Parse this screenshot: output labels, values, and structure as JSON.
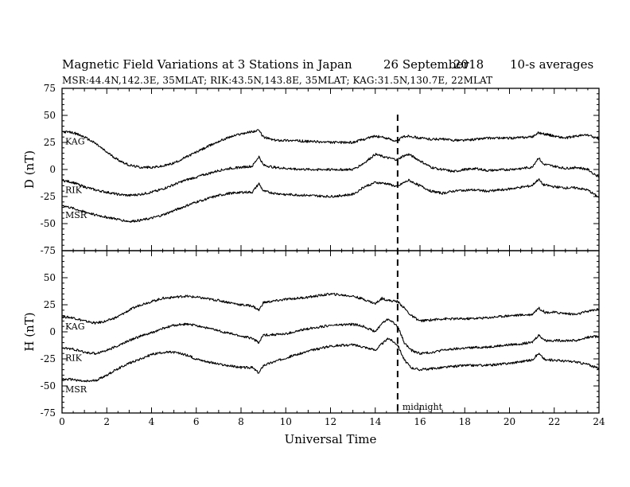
{
  "header": {
    "title": "Magnetic Field Variations at 3 Stations in Japan",
    "date": "26 September",
    "year": "2018",
    "averaging": "10-s averages",
    "subtitle": "MSR:44.4N,142.3E, 35MLAT;  RIK:43.5N,143.8E, 35MLAT;  KAG:31.5N,130.7E, 22MLAT"
  },
  "chart_data": [
    {
      "type": "line",
      "panel": "D",
      "ylabel": "D (nT)",
      "ylim": [
        -75,
        75
      ],
      "yticks": [
        75,
        50,
        25,
        0,
        -25,
        -50,
        -75
      ],
      "xlim": [
        0,
        24
      ],
      "series": [
        {
          "name": "KAG",
          "x": [
            0,
            0.5,
            1,
            1.5,
            2,
            2.5,
            3,
            3.5,
            4,
            4.5,
            5,
            5.5,
            6,
            6.5,
            7,
            7.5,
            8,
            8.5,
            8.8,
            9,
            9.5,
            10,
            11,
            12,
            13,
            13.5,
            14,
            14.5,
            15,
            15.2,
            15.5,
            16,
            16.5,
            17,
            17.5,
            18,
            18.5,
            19,
            20,
            21,
            21.3,
            21.5,
            22,
            22.5,
            23,
            23.5,
            24
          ],
          "y": [
            35,
            34,
            30,
            24,
            16,
            9,
            4,
            2,
            2,
            3,
            6,
            11,
            16,
            21,
            26,
            30,
            33,
            35,
            36,
            30,
            27,
            27,
            26,
            25,
            25,
            28,
            31,
            29,
            26,
            30,
            31,
            29,
            28,
            28,
            27,
            27,
            28,
            29,
            29,
            30,
            34,
            33,
            31,
            29,
            31,
            32,
            28
          ]
        },
        {
          "name": "RIK",
          "x": [
            0,
            0.5,
            1,
            1.5,
            2,
            2.5,
            3,
            3.5,
            4,
            4.5,
            5,
            5.5,
            6,
            6.5,
            7,
            7.5,
            8,
            8.5,
            8.8,
            9,
            9.5,
            10,
            11,
            12,
            13,
            13.5,
            14,
            14.5,
            15,
            15.2,
            15.5,
            16,
            16.5,
            17,
            17.5,
            18,
            18.5,
            19,
            20,
            21,
            21.3,
            21.5,
            22,
            22.5,
            23,
            23.5,
            24
          ],
          "y": [
            -10,
            -12,
            -16,
            -19,
            -21,
            -23,
            -24,
            -23,
            -21,
            -18,
            -14,
            -10,
            -7,
            -4,
            -1,
            1,
            2,
            3,
            12,
            4,
            2,
            1,
            0,
            0,
            0,
            6,
            14,
            11,
            9,
            12,
            14,
            8,
            2,
            0,
            -2,
            0,
            1,
            -1,
            0,
            2,
            11,
            5,
            3,
            1,
            2,
            0,
            -7
          ]
        },
        {
          "name": "MSR",
          "x": [
            0,
            0.5,
            1,
            1.5,
            2,
            2.5,
            3,
            3.5,
            4,
            4.5,
            5,
            5.5,
            6,
            6.5,
            7,
            7.5,
            8,
            8.5,
            8.8,
            9,
            9.5,
            10,
            11,
            12,
            13,
            13.5,
            14,
            14.5,
            15,
            15.2,
            15.5,
            16,
            16.5,
            17,
            17.5,
            18,
            18.5,
            19,
            20,
            21,
            21.3,
            21.5,
            22,
            22.5,
            23,
            23.5,
            24
          ],
          "y": [
            -33,
            -36,
            -39,
            -42,
            -44,
            -46,
            -48,
            -47,
            -45,
            -42,
            -38,
            -34,
            -30,
            -27,
            -24,
            -22,
            -21,
            -21,
            -13,
            -20,
            -22,
            -23,
            -24,
            -25,
            -23,
            -16,
            -12,
            -13,
            -16,
            -13,
            -10,
            -15,
            -20,
            -22,
            -20,
            -19,
            -19,
            -20,
            -18,
            -15,
            -9,
            -14,
            -16,
            -17,
            -17,
            -19,
            -26
          ]
        }
      ]
    },
    {
      "type": "line",
      "panel": "H",
      "ylabel": "H (nT)",
      "ylim": [
        -75,
        75
      ],
      "yticks": [
        50,
        25,
        0,
        -25,
        -50,
        -75
      ],
      "xlim": [
        0,
        24
      ],
      "xlabel": "Universal Time",
      "xticks": [
        0,
        2,
        4,
        6,
        8,
        10,
        12,
        14,
        16,
        18,
        20,
        22,
        24
      ],
      "annotation": {
        "x": 15,
        "label": "midnight"
      },
      "series": [
        {
          "name": "KAG",
          "x": [
            0,
            0.5,
            1,
            1.5,
            2,
            2.5,
            3,
            3.5,
            4,
            4.5,
            5,
            5.5,
            6,
            7,
            8,
            8.5,
            8.8,
            9,
            10,
            11,
            12,
            13,
            13.5,
            14,
            14.3,
            14.6,
            15,
            15.3,
            15.6,
            16,
            16.5,
            17,
            18,
            19,
            20,
            21,
            21.3,
            21.6,
            22,
            23,
            23.5,
            24
          ],
          "y": [
            14,
            13,
            10,
            8,
            10,
            14,
            20,
            25,
            28,
            31,
            32,
            33,
            32,
            29,
            25,
            24,
            20,
            27,
            30,
            32,
            35,
            33,
            30,
            26,
            31,
            29,
            28,
            22,
            15,
            10,
            11,
            12,
            12,
            13,
            15,
            16,
            22,
            18,
            18,
            16,
            19,
            21
          ]
        },
        {
          "name": "RIK",
          "x": [
            0,
            0.5,
            1,
            1.5,
            2,
            2.5,
            3,
            3.5,
            4,
            4.5,
            5,
            5.5,
            6,
            7,
            8,
            8.5,
            8.8,
            9,
            10,
            11,
            12,
            13,
            13.5,
            14,
            14.3,
            14.6,
            15,
            15.3,
            15.6,
            16,
            16.5,
            17,
            18,
            19,
            20,
            21,
            21.3,
            21.6,
            22,
            23,
            23.5,
            24
          ],
          "y": [
            -15,
            -16,
            -19,
            -20,
            -17,
            -13,
            -8,
            -4,
            -1,
            3,
            6,
            7,
            6,
            1,
            -4,
            -6,
            -10,
            -3,
            -2,
            3,
            6,
            7,
            5,
            0,
            8,
            12,
            5,
            -10,
            -17,
            -20,
            -19,
            -17,
            -15,
            -14,
            -12,
            -10,
            -3,
            -8,
            -8,
            -8,
            -5,
            -4
          ]
        },
        {
          "name": "MSR",
          "x": [
            0,
            0.5,
            1,
            1.5,
            2,
            2.5,
            3,
            3.5,
            4,
            4.5,
            5,
            5.5,
            6,
            7,
            8,
            8.5,
            8.8,
            9,
            10,
            11,
            12,
            13,
            13.5,
            14,
            14.3,
            14.6,
            15,
            15.3,
            15.6,
            16,
            16.5,
            17,
            18,
            19,
            20,
            21,
            21.3,
            21.6,
            22,
            23,
            23.5,
            24
          ],
          "y": [
            -44,
            -44,
            -46,
            -45,
            -40,
            -34,
            -29,
            -25,
            -21,
            -19,
            -19,
            -21,
            -25,
            -30,
            -33,
            -33,
            -38,
            -31,
            -24,
            -18,
            -13,
            -12,
            -14,
            -17,
            -11,
            -6,
            -12,
            -26,
            -33,
            -35,
            -34,
            -33,
            -31,
            -31,
            -29,
            -26,
            -20,
            -26,
            -26,
            -28,
            -30,
            -34
          ]
        }
      ]
    }
  ]
}
